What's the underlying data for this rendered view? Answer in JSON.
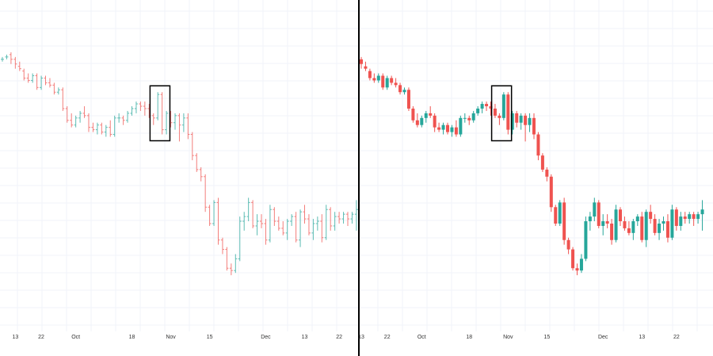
{
  "colors": {
    "up": "#26a69a",
    "down": "#ef5350",
    "background": "#ffffff",
    "grid": "#f0f3fa",
    "divider": "#000000",
    "highlight_box": "#000000"
  },
  "chart_data": [
    {
      "type": "ohlc_bar",
      "title": "",
      "x_axis_ticks": [
        "13",
        "22",
        "Oct",
        "18",
        "Nov",
        "15",
        "Dec",
        "13",
        "22"
      ],
      "x_tick_positions": [
        3,
        9,
        17,
        30,
        39,
        48,
        61,
        70,
        78
      ],
      "highlight_range": [
        35,
        38
      ],
      "grid": true,
      "ylim": [
        0,
        100
      ],
      "series": [
        {
          "o": 95,
          "h": 96,
          "l": 94,
          "c": 95
        },
        {
          "o": 96,
          "h": 97,
          "l": 95,
          "c": 96
        },
        {
          "o": 97,
          "h": 98,
          "l": 93,
          "c": 95
        },
        {
          "o": 95,
          "h": 96,
          "l": 91,
          "c": 93
        },
        {
          "o": 92,
          "h": 94,
          "l": 90,
          "c": 91
        },
        {
          "o": 90,
          "h": 91,
          "l": 86,
          "c": 87
        },
        {
          "o": 87,
          "h": 89,
          "l": 85,
          "c": 86
        },
        {
          "o": 86,
          "h": 89,
          "l": 85,
          "c": 88
        },
        {
          "o": 88,
          "h": 89,
          "l": 82,
          "c": 83
        },
        {
          "o": 83,
          "h": 88,
          "l": 82,
          "c": 87
        },
        {
          "o": 87,
          "h": 88,
          "l": 84,
          "c": 85
        },
        {
          "o": 85,
          "h": 87,
          "l": 83,
          "c": 84
        },
        {
          "o": 84,
          "h": 85,
          "l": 80,
          "c": 81
        },
        {
          "o": 81,
          "h": 83,
          "l": 80,
          "c": 82
        },
        {
          "o": 82,
          "h": 83,
          "l": 73,
          "c": 74
        },
        {
          "o": 74,
          "h": 75,
          "l": 68,
          "c": 69
        },
        {
          "o": 69,
          "h": 72,
          "l": 66,
          "c": 67
        },
        {
          "o": 67,
          "h": 71,
          "l": 66,
          "c": 70
        },
        {
          "o": 70,
          "h": 73,
          "l": 68,
          "c": 72
        },
        {
          "o": 72,
          "h": 75,
          "l": 70,
          "c": 71
        },
        {
          "o": 71,
          "h": 72,
          "l": 64,
          "c": 66
        },
        {
          "o": 66,
          "h": 68,
          "l": 64,
          "c": 65
        },
        {
          "o": 65,
          "h": 68,
          "l": 63,
          "c": 67
        },
        {
          "o": 67,
          "h": 68,
          "l": 63,
          "c": 64
        },
        {
          "o": 64,
          "h": 67,
          "l": 62,
          "c": 66
        },
        {
          "o": 66,
          "h": 69,
          "l": 62,
          "c": 63
        },
        {
          "o": 63,
          "h": 71,
          "l": 62,
          "c": 70
        },
        {
          "o": 70,
          "h": 72,
          "l": 68,
          "c": 70
        },
        {
          "o": 70,
          "h": 71,
          "l": 67,
          "c": 69
        },
        {
          "o": 69,
          "h": 73,
          "l": 68,
          "c": 72
        },
        {
          "o": 72,
          "h": 75,
          "l": 71,
          "c": 74
        },
        {
          "o": 74,
          "h": 77,
          "l": 72,
          "c": 76
        },
        {
          "o": 76,
          "h": 77,
          "l": 73,
          "c": 75
        },
        {
          "o": 75,
          "h": 77,
          "l": 71,
          "c": 74
        },
        {
          "o": 74,
          "h": 76,
          "l": 70,
          "c": 71
        },
        {
          "o": 71,
          "h": 72,
          "l": 67,
          "c": 70
        },
        {
          "o": 70,
          "h": 81,
          "l": 69,
          "c": 80
        },
        {
          "o": 80,
          "h": 81,
          "l": 63,
          "c": 65
        },
        {
          "o": 65,
          "h": 73,
          "l": 63,
          "c": 72
        },
        {
          "o": 72,
          "h": 73,
          "l": 66,
          "c": 68
        },
        {
          "o": 68,
          "h": 72,
          "l": 65,
          "c": 71
        },
        {
          "o": 71,
          "h": 72,
          "l": 60,
          "c": 67
        },
        {
          "o": 67,
          "h": 72,
          "l": 64,
          "c": 70
        },
        {
          "o": 70,
          "h": 72,
          "l": 61,
          "c": 63
        },
        {
          "o": 63,
          "h": 64,
          "l": 52,
          "c": 54
        },
        {
          "o": 54,
          "h": 55,
          "l": 47,
          "c": 48
        },
        {
          "o": 48,
          "h": 49,
          "l": 43,
          "c": 45
        },
        {
          "o": 45,
          "h": 46,
          "l": 30,
          "c": 32
        },
        {
          "o": 32,
          "h": 33,
          "l": 24,
          "c": 25
        },
        {
          "o": 25,
          "h": 35,
          "l": 24,
          "c": 34
        },
        {
          "o": 34,
          "h": 36,
          "l": 16,
          "c": 18
        },
        {
          "o": 18,
          "h": 19,
          "l": 12,
          "c": 14
        },
        {
          "o": 14,
          "h": 15,
          "l": 5,
          "c": 6
        },
        {
          "o": 6,
          "h": 8,
          "l": 3,
          "c": 5
        },
        {
          "o": 5,
          "h": 12,
          "l": 4,
          "c": 10
        },
        {
          "o": 10,
          "h": 28,
          "l": 9,
          "c": 26
        },
        {
          "o": 26,
          "h": 30,
          "l": 22,
          "c": 28
        },
        {
          "o": 28,
          "h": 36,
          "l": 26,
          "c": 34
        },
        {
          "o": 34,
          "h": 35,
          "l": 23,
          "c": 24
        },
        {
          "o": 24,
          "h": 29,
          "l": 20,
          "c": 26
        },
        {
          "o": 26,
          "h": 29,
          "l": 23,
          "c": 25
        },
        {
          "o": 25,
          "h": 27,
          "l": 16,
          "c": 18
        },
        {
          "o": 18,
          "h": 33,
          "l": 17,
          "c": 31
        },
        {
          "o": 31,
          "h": 32,
          "l": 24,
          "c": 26
        },
        {
          "o": 26,
          "h": 28,
          "l": 22,
          "c": 23
        },
        {
          "o": 23,
          "h": 26,
          "l": 20,
          "c": 21
        },
        {
          "o": 21,
          "h": 27,
          "l": 18,
          "c": 26
        },
        {
          "o": 26,
          "h": 29,
          "l": 24,
          "c": 28
        },
        {
          "o": 28,
          "h": 30,
          "l": 17,
          "c": 18
        },
        {
          "o": 18,
          "h": 31,
          "l": 15,
          "c": 30
        },
        {
          "o": 30,
          "h": 33,
          "l": 25,
          "c": 27
        },
        {
          "o": 27,
          "h": 29,
          "l": 20,
          "c": 21
        },
        {
          "o": 21,
          "h": 27,
          "l": 18,
          "c": 25
        },
        {
          "o": 25,
          "h": 28,
          "l": 22,
          "c": 26
        },
        {
          "o": 26,
          "h": 29,
          "l": 17,
          "c": 19
        },
        {
          "o": 19,
          "h": 33,
          "l": 18,
          "c": 31
        },
        {
          "o": 31,
          "h": 32,
          "l": 22,
          "c": 24
        },
        {
          "o": 24,
          "h": 30,
          "l": 22,
          "c": 28
        },
        {
          "o": 28,
          "h": 30,
          "l": 25,
          "c": 27
        },
        {
          "o": 27,
          "h": 30,
          "l": 25,
          "c": 29
        },
        {
          "o": 29,
          "h": 30,
          "l": 24,
          "c": 27
        },
        {
          "o": 27,
          "h": 30,
          "l": 25,
          "c": 29
        },
        {
          "o": 29,
          "h": 35,
          "l": 22,
          "c": 31
        }
      ]
    },
    {
      "type": "candlestick",
      "title": "",
      "x_axis_ticks": [
        "13",
        "22",
        "Oct",
        "18",
        "Nov",
        "15",
        "Dec",
        "13",
        "22"
      ],
      "x_tick_positions": [
        0,
        6,
        14,
        25,
        34,
        43,
        56,
        65,
        73
      ],
      "highlight_range": [
        31,
        34
      ],
      "grid": true,
      "ylim": [
        0,
        100
      ],
      "series_ref": "same as first chart (shown starting from index 3)"
    }
  ]
}
